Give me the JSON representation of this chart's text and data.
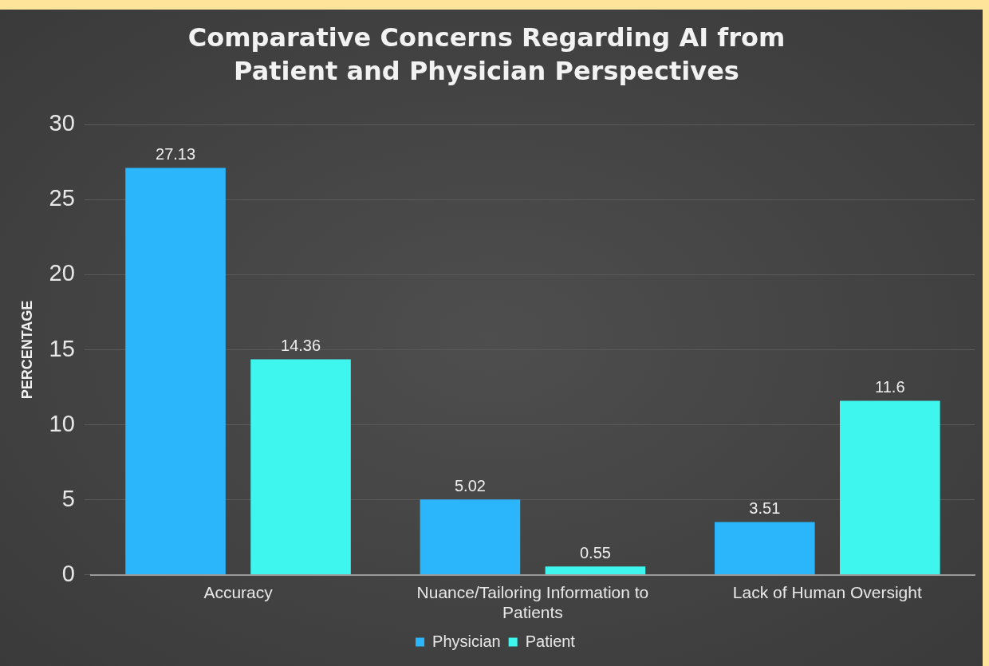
{
  "chart_data": {
    "type": "bar",
    "title": "Comparative Concerns Regarding AI from Patient and Physician Perspectives",
    "ylabel": "PERCENTAGE",
    "categories": [
      "Accuracy",
      "Nuance/Tailoring Information to Patients",
      "Lack of Human Oversight"
    ],
    "series": [
      {
        "name": "Physician",
        "color": "#2bb6fb",
        "values": [
          27.13,
          5.02,
          3.51
        ]
      },
      {
        "name": "Patient",
        "color": "#3ff6ee",
        "values": [
          14.36,
          0.55,
          11.6
        ]
      }
    ],
    "ylim": [
      0,
      30
    ],
    "yticks": [
      0,
      5,
      10,
      15,
      20,
      25,
      30
    ],
    "grid": "y",
    "legend": "bottom",
    "data_labels": true
  }
}
